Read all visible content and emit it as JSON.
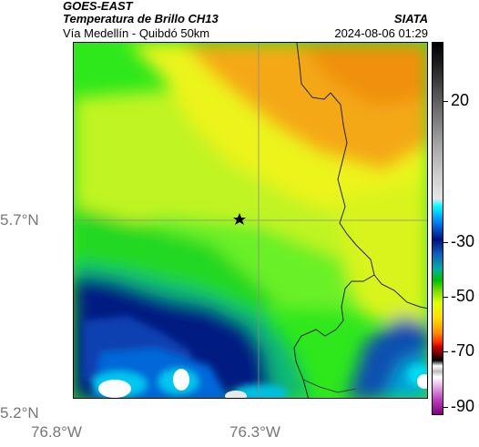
{
  "header": {
    "satellite": "GOES-EAST",
    "product": "Temperatura de Brillo CH13",
    "organization": "SIATA",
    "region": "Vía Medellín - Quibdó 50km",
    "timestamp": "2024-08-06 01:29"
  },
  "axes": {
    "y_labels": [
      "5.7°N",
      "5.2°N"
    ],
    "x_labels": [
      "76.8°W",
      "76.3°W"
    ]
  },
  "colorbar": {
    "labels": [
      "20",
      "-30",
      "-50",
      "-70",
      "-90"
    ]
  },
  "marker": {
    "icon": "star-icon"
  },
  "colors": {
    "orange": "#f4a816",
    "yellow": "#ecf41a",
    "green": "#2ee81c",
    "navy": "#031b82",
    "cyan": "#00d0f0"
  }
}
